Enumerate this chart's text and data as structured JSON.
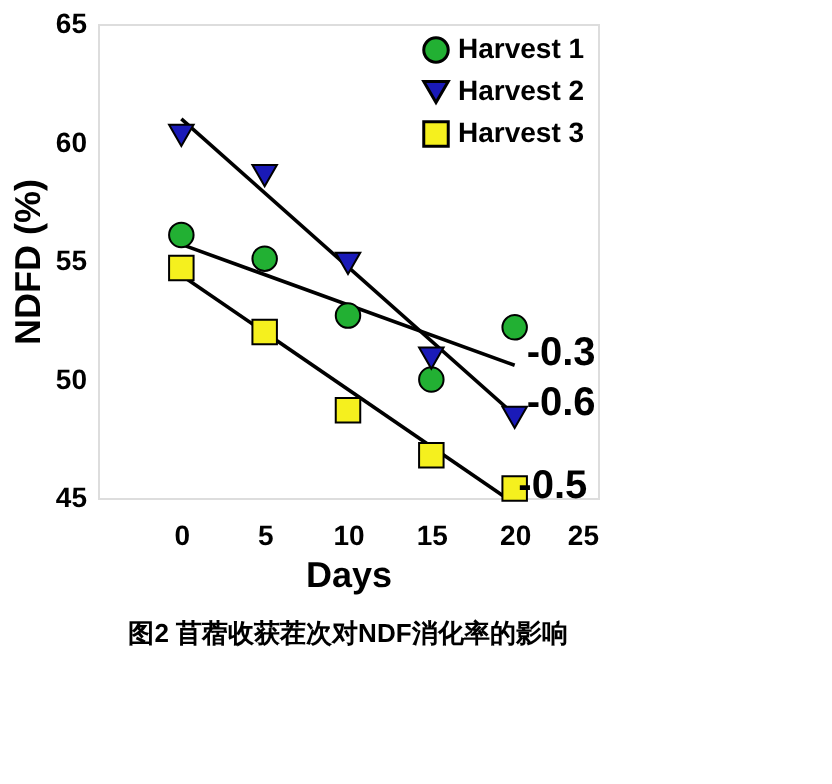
{
  "chart_data": {
    "type": "scatter",
    "title": "图2 苜蓿收获茬次对NDF消化率的影响",
    "xlabel": "Days",
    "ylabel": "NDFD (%)",
    "x": [
      0,
      5,
      10,
      15,
      20
    ],
    "series": [
      {
        "name": "Harvest 1",
        "color": "#22b033",
        "marker": "circle",
        "values": [
          56.1,
          55.1,
          52.7,
          50.0,
          52.2
        ]
      },
      {
        "name": "Harvest 2",
        "color": "#1a1ab8",
        "marker": "triangle",
        "values": [
          60.3,
          58.6,
          54.9,
          50.9,
          48.4
        ]
      },
      {
        "name": "Harvest 3",
        "color": "#f5f01e",
        "marker": "square",
        "values": [
          54.7,
          52.0,
          48.7,
          46.8,
          45.4
        ]
      },
      {
        "type": "line",
        "color": "#000000",
        "x": [
          0,
          20
        ],
        "values": [
          55.7,
          50.6
        ]
      },
      {
        "type": "line",
        "color": "#000000",
        "x": [
          0,
          20
        ],
        "values": [
          61.0,
          48.5
        ]
      },
      {
        "type": "line",
        "color": "#000000",
        "x": [
          0,
          19.5
        ],
        "values": [
          54.4,
          45.0
        ]
      }
    ],
    "annotations": [
      "-0.3",
      "-0.6",
      "-0.5"
    ],
    "xlim": [
      -5,
      25
    ],
    "xticks": [
      0,
      5,
      10,
      15,
      20,
      25
    ],
    "ylim": [
      45,
      65
    ],
    "yticks": [
      45,
      50,
      55,
      60,
      65
    ],
    "grid": false,
    "legend": "top right"
  }
}
